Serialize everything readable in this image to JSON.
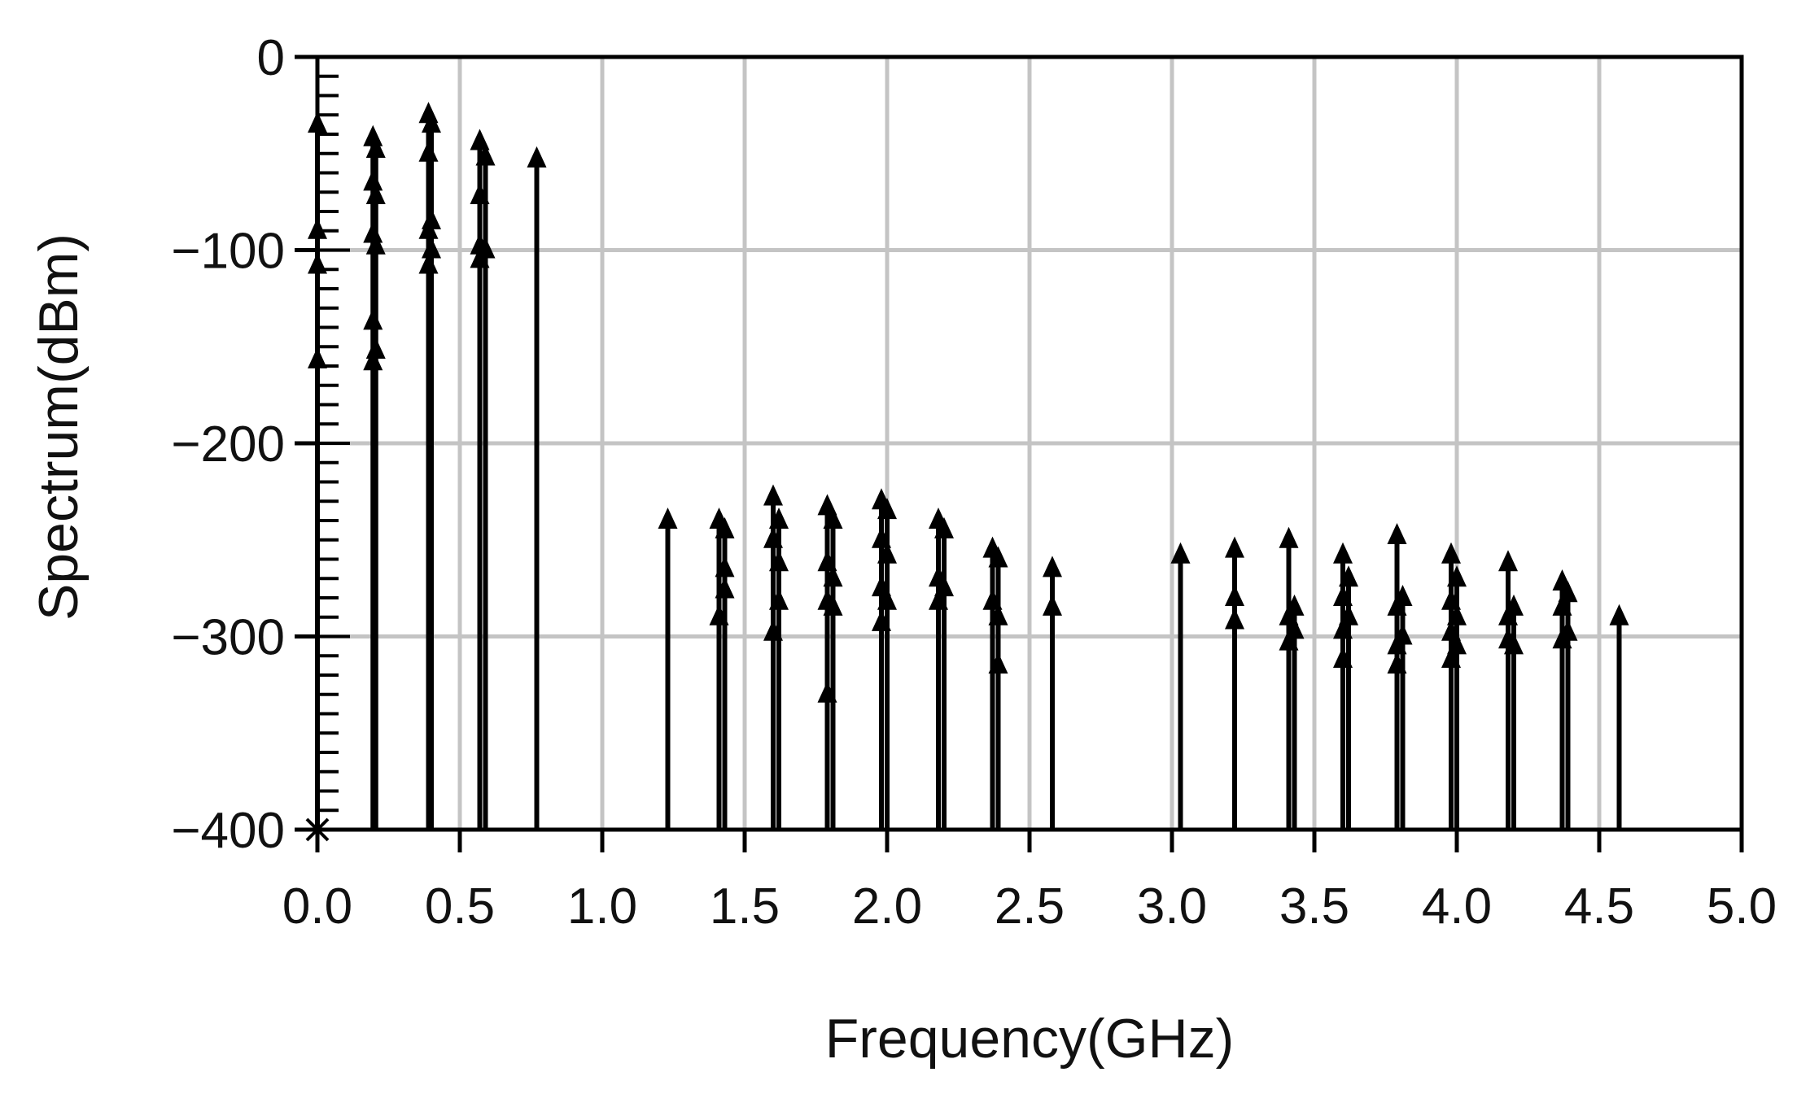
{
  "chart_data": {
    "type": "stem",
    "title": "",
    "xlabel": "Frequency(GHz)",
    "ylabel": "Spectrum(dBm)",
    "xlim": [
      0,
      5
    ],
    "ylim": [
      -400,
      0
    ],
    "baseline": -400,
    "grid": true,
    "marker": "triangle-up",
    "xticks": [
      0,
      0.5,
      1,
      1.5,
      2,
      2.5,
      3,
      3.5,
      4,
      4.5,
      5
    ],
    "xtick_labels": [
      "0.0",
      "0.5",
      "1.0",
      "1.5",
      "2.0",
      "2.5",
      "3.0",
      "3.5",
      "4.0",
      "4.5",
      "5.0"
    ],
    "yticks": [
      0,
      -100,
      -200,
      -300,
      -400
    ],
    "ytick_labels": [
      "0",
      "−100",
      "−200",
      "−300",
      "−400"
    ],
    "stems": [
      {
        "x": 0.0,
        "y": [
          -35,
          -90,
          -108,
          -157
        ]
      },
      {
        "x": 0.195,
        "y": [
          -42,
          -65,
          -92,
          -137,
          -158
        ]
      },
      {
        "x": 0.205,
        "y": [
          -48,
          -72,
          -98,
          -152
        ]
      },
      {
        "x": 0.39,
        "y": [
          -30,
          -50,
          -90,
          -108
        ]
      },
      {
        "x": 0.4,
        "y": [
          -35,
          -85,
          -100
        ]
      },
      {
        "x": 0.57,
        "y": [
          -44,
          -72,
          -98,
          -105
        ]
      },
      {
        "x": 0.59,
        "y": [
          -52,
          -100
        ]
      },
      {
        "x": 0.77,
        "y": [
          -53
        ]
      },
      {
        "x": 1.23,
        "y": [
          -240
        ]
      },
      {
        "x": 1.41,
        "y": [
          -240,
          -290
        ]
      },
      {
        "x": 1.43,
        "y": [
          -245,
          -265,
          -276
        ]
      },
      {
        "x": 1.6,
        "y": [
          -228,
          -250,
          -298
        ]
      },
      {
        "x": 1.62,
        "y": [
          -240,
          -262,
          -282
        ]
      },
      {
        "x": 1.79,
        "y": [
          -233,
          -262,
          -282,
          -330
        ]
      },
      {
        "x": 1.81,
        "y": [
          -240,
          -270,
          -285
        ]
      },
      {
        "x": 1.98,
        "y": [
          -230,
          -250,
          -275,
          -293
        ]
      },
      {
        "x": 2.0,
        "y": [
          -235,
          -258,
          -282
        ]
      },
      {
        "x": 2.18,
        "y": [
          -240,
          -270,
          -282
        ]
      },
      {
        "x": 2.2,
        "y": [
          -245,
          -275
        ]
      },
      {
        "x": 2.37,
        "y": [
          -255,
          -282
        ]
      },
      {
        "x": 2.39,
        "y": [
          -260,
          -290,
          -315
        ]
      },
      {
        "x": 2.58,
        "y": [
          -265,
          -285
        ]
      },
      {
        "x": 3.03,
        "y": [
          -258
        ]
      },
      {
        "x": 3.22,
        "y": [
          -255,
          -280,
          -292
        ]
      },
      {
        "x": 3.41,
        "y": [
          -250,
          -290,
          -303
        ]
      },
      {
        "x": 3.43,
        "y": [
          -285,
          -297
        ]
      },
      {
        "x": 3.6,
        "y": [
          -258,
          -280,
          -297,
          -312
        ]
      },
      {
        "x": 3.62,
        "y": [
          -270,
          -290
        ]
      },
      {
        "x": 3.79,
        "y": [
          -248,
          -285,
          -305,
          -315
        ]
      },
      {
        "x": 3.81,
        "y": [
          -280,
          -300
        ]
      },
      {
        "x": 3.98,
        "y": [
          -258,
          -282,
          -298,
          -312
        ]
      },
      {
        "x": 4.0,
        "y": [
          -270,
          -290,
          -305
        ]
      },
      {
        "x": 4.18,
        "y": [
          -262,
          -290,
          -302
        ]
      },
      {
        "x": 4.2,
        "y": [
          -285,
          -305
        ]
      },
      {
        "x": 4.37,
        "y": [
          -272,
          -285,
          -302
        ]
      },
      {
        "x": 4.39,
        "y": [
          -278,
          -298
        ]
      },
      {
        "x": 4.57,
        "y": [
          -290
        ]
      }
    ],
    "bottom_markers": [
      {
        "x": 0.0,
        "y": -400,
        "symbol": "x"
      }
    ]
  }
}
